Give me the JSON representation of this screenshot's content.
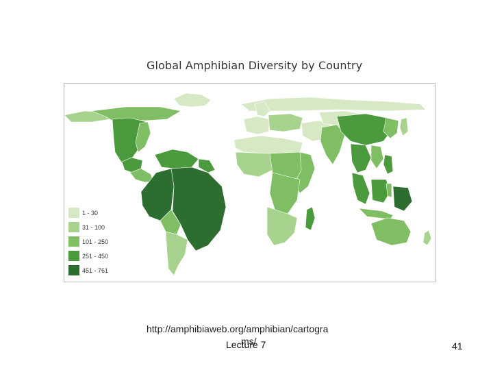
{
  "title": "Global Amphibian Diversity by Country",
  "legend": {
    "items": [
      {
        "label": "1 - 30",
        "color": "#d6e9c4"
      },
      {
        "label": "31 - 100",
        "color": "#a8d38f"
      },
      {
        "label": "101 - 250",
        "color": "#7fbe62"
      },
      {
        "label": "251 - 450",
        "color": "#4c9a3e"
      },
      {
        "label": "451 - 761",
        "color": "#2d6e30"
      }
    ]
  },
  "source": {
    "line1": "http://amphibiaweb.org/amphibian/cartogra",
    "line2": "ms/"
  },
  "footer": {
    "lecture": "Lecture 7",
    "page_number": "41"
  }
}
